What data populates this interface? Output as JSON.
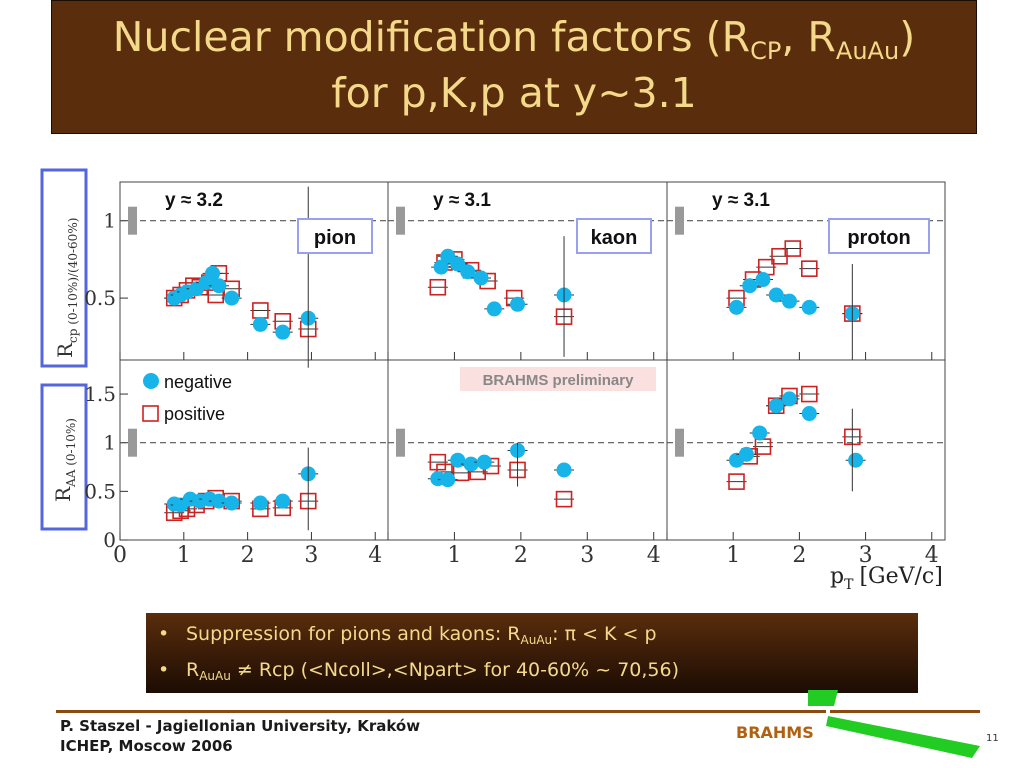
{
  "slide": {
    "title_line1_a": "Nuclear modification factors (R",
    "title_line1_sub1": "CP",
    "title_line1_b": ", R",
    "title_line1_sub2": "AuAu",
    "title_line1_c": ")",
    "title_line2": "for p,K,p at y~3.1",
    "bullets": [
      {
        "dot": "•",
        "a": "Suppression for pions and kaons: R",
        "sub": "AuAu",
        "b": ": π < K < p"
      },
      {
        "dot": "•",
        "a": "R",
        "sub": "AuAu",
        "b": " ≠ Rcp (<Ncoll>,<Npart> for 40-60% ~ 70,56)"
      }
    ],
    "footer_author": "P. Staszel - Jagiellonian University, Kraków",
    "footer_conf": "ICHEP, Moscow 2006",
    "footer_brand": "BRAHMS",
    "page_number": "11",
    "colors": {
      "title_bg": "#5a2d0c",
      "title_text": "#f5d98a",
      "negative": "#16b4e8",
      "positive": "#cc2222",
      "brand": "#b06010",
      "green": "#22cc22",
      "panel_frame": "#5566dd"
    }
  },
  "chart_data": {
    "type": "scatter",
    "preliminary_label": "BRAHMS preliminary",
    "xlabel": "p",
    "xlabel_sub": "T",
    "xlabel_unit": "[GeV/c]",
    "xlim": [
      0,
      4.2
    ],
    "x_ticks": [
      "0",
      "1",
      "2",
      "3",
      "4"
    ],
    "reference_line": 1,
    "legend": {
      "negative": "negative",
      "positive": "positive",
      "location": "bottom-left panel, upper-left"
    },
    "rows": [
      {
        "ylabel": "R",
        "ylabel_sub": "cp (0-10%)/(40-60%)",
        "ylim": [
          0.1,
          1.25
        ],
        "y_ticks": [
          "0.5",
          "1"
        ]
      },
      {
        "ylabel": "R",
        "ylabel_sub": "AA (0-10%)",
        "ylim": [
          0,
          1.85
        ],
        "y_ticks": [
          "0",
          "0.5",
          "1",
          "1.5"
        ]
      }
    ],
    "panels": [
      {
        "row": 0,
        "col": 0,
        "rapidity": "y ≈ 3.2",
        "particle": "pion",
        "negative": [
          [
            0.85,
            0.5
          ],
          [
            0.95,
            0.52
          ],
          [
            1.05,
            0.54
          ],
          [
            1.2,
            0.56
          ],
          [
            1.35,
            0.6
          ],
          [
            1.45,
            0.66
          ],
          [
            1.55,
            0.58
          ],
          [
            1.75,
            0.5
          ],
          [
            2.2,
            0.33
          ],
          [
            2.55,
            0.28
          ],
          [
            2.95,
            0.37
          ]
        ],
        "positive": [
          [
            0.85,
            0.5
          ],
          [
            0.95,
            0.52
          ],
          [
            1.05,
            0.55
          ],
          [
            1.15,
            0.58
          ],
          [
            1.25,
            0.57
          ],
          [
            1.4,
            0.6
          ],
          [
            1.55,
            0.66
          ],
          [
            1.5,
            0.52
          ],
          [
            1.75,
            0.56
          ],
          [
            2.2,
            0.42
          ],
          [
            2.55,
            0.35
          ],
          [
            2.95,
            0.3
          ]
        ]
      },
      {
        "row": 0,
        "col": 1,
        "rapidity": "y ≈ 3.1",
        "particle": "kaon",
        "negative": [
          [
            0.8,
            0.7
          ],
          [
            0.9,
            0.77
          ],
          [
            1.05,
            0.72
          ],
          [
            1.2,
            0.67
          ],
          [
            1.4,
            0.63
          ],
          [
            1.6,
            0.43
          ],
          [
            1.95,
            0.46
          ],
          [
            2.65,
            0.52
          ]
        ],
        "positive": [
          [
            0.75,
            0.57
          ],
          [
            0.85,
            0.73
          ],
          [
            1.0,
            0.75
          ],
          [
            1.25,
            0.68
          ],
          [
            1.5,
            0.61
          ],
          [
            1.9,
            0.5
          ],
          [
            2.65,
            0.38
          ]
        ]
      },
      {
        "row": 0,
        "col": 2,
        "rapidity": "y ≈ 3.1",
        "particle": "proton",
        "negative": [
          [
            1.05,
            0.44
          ],
          [
            1.25,
            0.58
          ],
          [
            1.45,
            0.62
          ],
          [
            1.65,
            0.52
          ],
          [
            1.85,
            0.48
          ],
          [
            2.15,
            0.44
          ],
          [
            2.8,
            0.4
          ]
        ],
        "positive": [
          [
            1.05,
            0.5
          ],
          [
            1.3,
            0.62
          ],
          [
            1.5,
            0.7
          ],
          [
            1.7,
            0.77
          ],
          [
            1.9,
            0.82
          ],
          [
            2.15,
            0.69
          ],
          [
            2.8,
            0.4
          ]
        ]
      },
      {
        "row": 1,
        "col": 0,
        "rapidity": "",
        "particle": "",
        "negative": [
          [
            0.85,
            0.37
          ],
          [
            0.95,
            0.36
          ],
          [
            1.1,
            0.42
          ],
          [
            1.25,
            0.4
          ],
          [
            1.4,
            0.42
          ],
          [
            1.55,
            0.4
          ],
          [
            1.75,
            0.38
          ],
          [
            2.2,
            0.38
          ],
          [
            2.55,
            0.4
          ],
          [
            2.95,
            0.68
          ]
        ],
        "positive": [
          [
            0.85,
            0.28
          ],
          [
            0.95,
            0.3
          ],
          [
            1.05,
            0.32
          ],
          [
            1.2,
            0.36
          ],
          [
            1.35,
            0.4
          ],
          [
            1.5,
            0.43
          ],
          [
            1.75,
            0.4
          ],
          [
            2.2,
            0.32
          ],
          [
            2.55,
            0.33
          ],
          [
            2.95,
            0.4
          ]
        ]
      },
      {
        "row": 1,
        "col": 1,
        "rapidity": "",
        "particle": "",
        "negative": [
          [
            0.75,
            0.63
          ],
          [
            0.9,
            0.62
          ],
          [
            1.05,
            0.82
          ],
          [
            1.25,
            0.78
          ],
          [
            1.45,
            0.8
          ],
          [
            1.95,
            0.92
          ],
          [
            2.65,
            0.72
          ]
        ],
        "positive": [
          [
            0.75,
            0.8
          ],
          [
            0.85,
            0.7
          ],
          [
            1.1,
            0.69
          ],
          [
            1.35,
            0.7
          ],
          [
            1.55,
            0.76
          ],
          [
            1.95,
            0.72
          ],
          [
            2.65,
            0.42
          ]
        ]
      },
      {
        "row": 1,
        "col": 2,
        "rapidity": "",
        "particle": "",
        "negative": [
          [
            1.05,
            0.82
          ],
          [
            1.2,
            0.88
          ],
          [
            1.4,
            1.1
          ],
          [
            1.65,
            1.38
          ],
          [
            1.85,
            1.45
          ],
          [
            2.15,
            1.3
          ],
          [
            2.85,
            0.82
          ]
        ],
        "positive": [
          [
            1.05,
            0.6
          ],
          [
            1.25,
            0.86
          ],
          [
            1.45,
            0.96
          ],
          [
            1.65,
            1.38
          ],
          [
            1.85,
            1.48
          ],
          [
            2.15,
            1.5
          ],
          [
            2.8,
            1.06
          ]
        ]
      }
    ]
  }
}
